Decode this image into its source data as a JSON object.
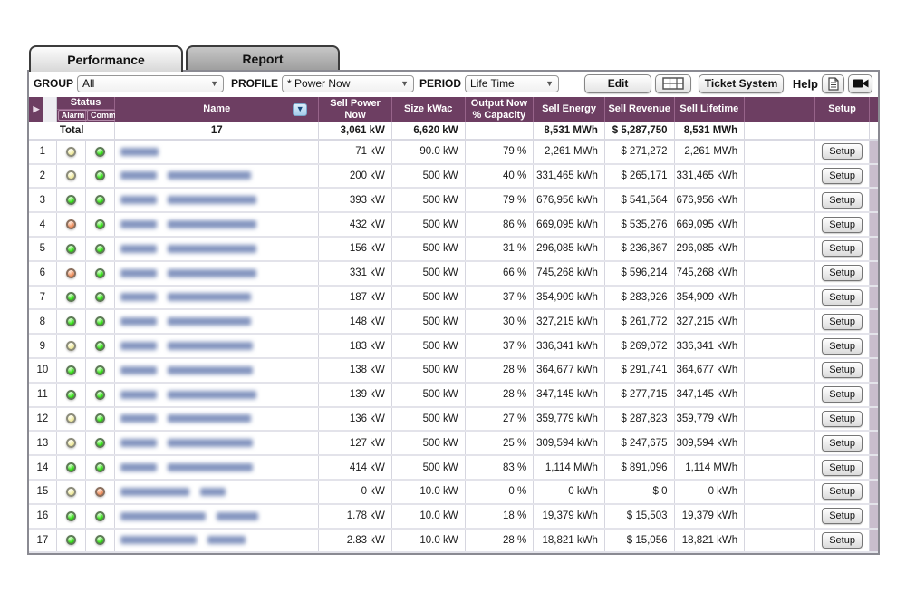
{
  "tabs": [
    {
      "label": "Performance",
      "active": true
    },
    {
      "label": "Report",
      "active": false
    }
  ],
  "toolbar": {
    "group_label": "GROUP",
    "group_value": "All",
    "profile_label": "PROFILE",
    "profile_value": "* Power Now",
    "period_label": "PERIOD",
    "period_value": "Life Time",
    "edit_label": "Edit",
    "ticket_label": "Ticket System",
    "help_label": "Help",
    "icons": [
      "grid-view-icon",
      "document-icon",
      "video-camera-icon"
    ]
  },
  "colors": {
    "header_bg": "#6d3e62",
    "status_green": "#35e016",
    "status_yellow": "#efeaa2",
    "status_orange": "#ef9161"
  },
  "table": {
    "header": {
      "status": "Status",
      "alarm": "Alarm",
      "comm": "Comm.",
      "name": "Name",
      "sell_power": "Sell Power Now",
      "size": "Size kWac",
      "output": "Output Now % Capacity",
      "sell_energy": "Sell Energy",
      "sell_revenue": "Sell Revenue",
      "sell_lifetime": "Sell Lifetime",
      "setup": "Setup"
    },
    "setup_button_label": "Setup",
    "total": {
      "label": "Total",
      "count": "17",
      "sell_power": "3,061 kW",
      "size": "6,620 kW",
      "output": "",
      "sell_energy": "8,531 MWh",
      "sell_revenue": "$ 5,287,750",
      "sell_lifetime": "8,531 MWh"
    },
    "rows": [
      {
        "num": "1",
        "alarm": "yellow",
        "comm": "green",
        "power": "71 kW",
        "size": "90.0 kW",
        "pct": "79 %",
        "energy": "2,261 MWh",
        "revenue": "$ 271,272",
        "lifetime": "2,261 MWh",
        "blur": [
          42
        ]
      },
      {
        "num": "2",
        "alarm": "yellow",
        "comm": "green",
        "power": "200 kW",
        "size": "500 kW",
        "pct": "40 %",
        "energy": "331,465 kWh",
        "revenue": "$ 265,171",
        "lifetime": "331,465 kWh",
        "blur": [
          40,
          92
        ]
      },
      {
        "num": "3",
        "alarm": "green",
        "comm": "green",
        "power": "393 kW",
        "size": "500 kW",
        "pct": "79 %",
        "energy": "676,956 kWh",
        "revenue": "$ 541,564",
        "lifetime": "676,956 kWh",
        "blur": [
          40,
          98
        ]
      },
      {
        "num": "4",
        "alarm": "orange",
        "comm": "green",
        "power": "432 kW",
        "size": "500 kW",
        "pct": "86 %",
        "energy": "669,095 kWh",
        "revenue": "$ 535,276",
        "lifetime": "669,095 kWh",
        "blur": [
          40,
          98
        ]
      },
      {
        "num": "5",
        "alarm": "green",
        "comm": "green",
        "power": "156 kW",
        "size": "500 kW",
        "pct": "31 %",
        "energy": "296,085 kWh",
        "revenue": "$ 236,867",
        "lifetime": "296,085 kWh",
        "blur": [
          40,
          98
        ]
      },
      {
        "num": "6",
        "alarm": "orange",
        "comm": "green",
        "power": "331 kW",
        "size": "500 kW",
        "pct": "66 %",
        "energy": "745,268 kWh",
        "revenue": "$ 596,214",
        "lifetime": "745,268 kWh",
        "blur": [
          40,
          98
        ]
      },
      {
        "num": "7",
        "alarm": "green",
        "comm": "green",
        "power": "187 kW",
        "size": "500 kW",
        "pct": "37 %",
        "energy": "354,909 kWh",
        "revenue": "$ 283,926",
        "lifetime": "354,909 kWh",
        "blur": [
          40,
          92
        ]
      },
      {
        "num": "8",
        "alarm": "green",
        "comm": "green",
        "power": "148 kW",
        "size": "500 kW",
        "pct": "30 %",
        "energy": "327,215 kWh",
        "revenue": "$ 261,772",
        "lifetime": "327,215 kWh",
        "blur": [
          40,
          92
        ]
      },
      {
        "num": "9",
        "alarm": "yellow",
        "comm": "green",
        "power": "183 kW",
        "size": "500 kW",
        "pct": "37 %",
        "energy": "336,341 kWh",
        "revenue": "$ 269,072",
        "lifetime": "336,341 kWh",
        "blur": [
          40,
          94
        ]
      },
      {
        "num": "10",
        "alarm": "green",
        "comm": "green",
        "power": "138 kW",
        "size": "500 kW",
        "pct": "28 %",
        "energy": "364,677 kWh",
        "revenue": "$ 291,741",
        "lifetime": "364,677 kWh",
        "blur": [
          40,
          94
        ]
      },
      {
        "num": "11",
        "alarm": "green",
        "comm": "green",
        "power": "139 kW",
        "size": "500 kW",
        "pct": "28 %",
        "energy": "347,145 kWh",
        "revenue": "$ 277,715",
        "lifetime": "347,145 kWh",
        "blur": [
          40,
          98
        ]
      },
      {
        "num": "12",
        "alarm": "yellow",
        "comm": "green",
        "power": "136 kW",
        "size": "500 kW",
        "pct": "27 %",
        "energy": "359,779 kWh",
        "revenue": "$ 287,823",
        "lifetime": "359,779 kWh",
        "blur": [
          40,
          92
        ]
      },
      {
        "num": "13",
        "alarm": "yellow",
        "comm": "green",
        "power": "127 kW",
        "size": "500 kW",
        "pct": "25 %",
        "energy": "309,594 kWh",
        "revenue": "$ 247,675",
        "lifetime": "309,594 kWh",
        "blur": [
          40,
          94
        ]
      },
      {
        "num": "14",
        "alarm": "green",
        "comm": "green",
        "power": "414 kW",
        "size": "500 kW",
        "pct": "83 %",
        "energy": "1,114 MWh",
        "revenue": "$ 891,096",
        "lifetime": "1,114 MWh",
        "blur": [
          40,
          94
        ]
      },
      {
        "num": "15",
        "alarm": "yellow",
        "comm": "orange",
        "power": "0 kW",
        "size": "10.0 kW",
        "pct": "0 %",
        "energy": "0 kWh",
        "revenue": "$ 0",
        "lifetime": "0 kWh",
        "blur": [
          76,
          28
        ]
      },
      {
        "num": "16",
        "alarm": "green",
        "comm": "green",
        "power": "1.78 kW",
        "size": "10.0 kW",
        "pct": "18 %",
        "energy": "19,379 kWh",
        "revenue": "$ 15,503",
        "lifetime": "19,379 kWh",
        "blur": [
          94,
          46
        ]
      },
      {
        "num": "17",
        "alarm": "green",
        "comm": "green",
        "power": "2.83 kW",
        "size": "10.0 kW",
        "pct": "28 %",
        "energy": "18,821 kWh",
        "revenue": "$ 15,056",
        "lifetime": "18,821 kWh",
        "blur": [
          84,
          42
        ]
      }
    ]
  }
}
